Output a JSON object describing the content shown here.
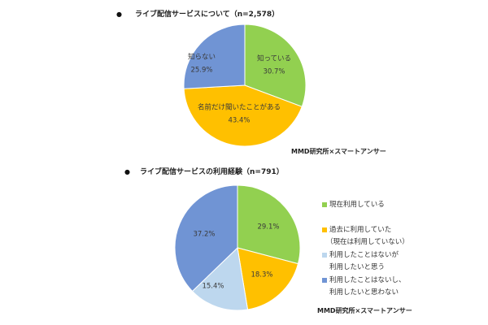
{
  "chart_data": [
    {
      "type": "pie",
      "bullet": "●",
      "title": "ライブ配信サービスについて（n=2,578）",
      "categories": [
        "知っている",
        "名前だけ聞いたことがある",
        "知らない"
      ],
      "values": [
        30.7,
        43.4,
        25.9
      ],
      "data_labels": [
        "30.7%",
        "43.4%",
        "25.9%"
      ],
      "colors": [
        "#92d050",
        "#ffc000",
        "#7094d4"
      ],
      "label_position": "inside",
      "direction": "clockwise",
      "source": "MMD研究所×スマートアンサー"
    },
    {
      "type": "pie",
      "bullet": "●",
      "title": "ライブ配信サービスの利用経験（n=791）",
      "categories": [
        [
          "現在利用している"
        ],
        [
          "過去に利用していた",
          "（現在は利用していない）"
        ],
        [
          "利用したことはないが",
          "利用したいと思う"
        ],
        [
          "利用したことはないし、",
          "利用したいと思わない"
        ]
      ],
      "values": [
        29.1,
        18.3,
        15.4,
        37.2
      ],
      "data_labels": [
        "29.1%",
        "18.3%",
        "15.4%",
        "37.2%"
      ],
      "colors": [
        "#92d050",
        "#ffc000",
        "#bdd7ee",
        "#7094d4"
      ],
      "legend": "right",
      "direction": "clockwise",
      "source": "MMD研究所×スマートアンサー"
    }
  ]
}
